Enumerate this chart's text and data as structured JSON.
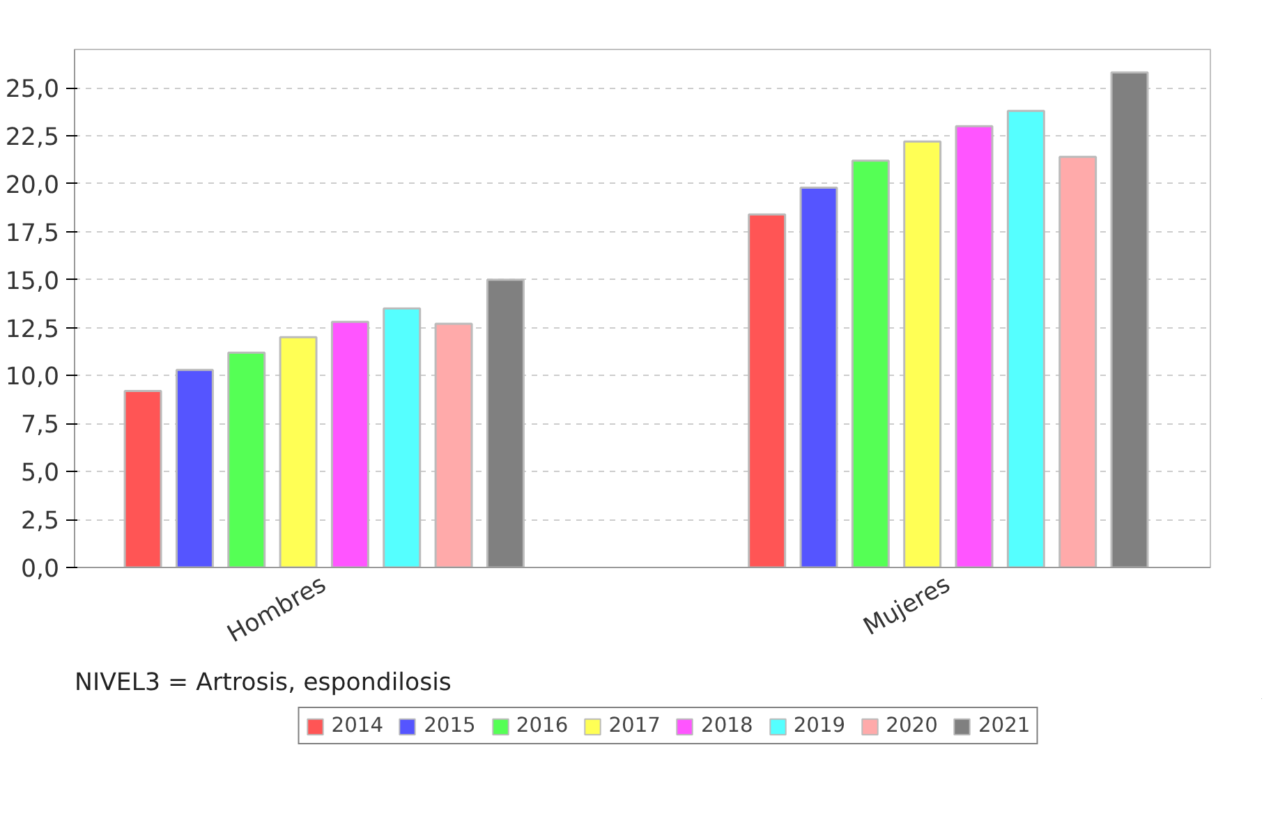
{
  "chart_data": {
    "type": "bar",
    "categories": [
      "Hombres",
      "Mujeres"
    ],
    "series": [
      {
        "name": "2014",
        "color": "#ff5555",
        "values": [
          9.2,
          18.4
        ]
      },
      {
        "name": "2015",
        "color": "#5555ff",
        "values": [
          10.3,
          19.8
        ]
      },
      {
        "name": "2016",
        "color": "#55ff55",
        "values": [
          11.2,
          21.2
        ]
      },
      {
        "name": "2017",
        "color": "#ffff55",
        "values": [
          12.0,
          22.2
        ]
      },
      {
        "name": "2018",
        "color": "#ff55ff",
        "values": [
          12.8,
          23.0
        ]
      },
      {
        "name": "2019",
        "color": "#55ffff",
        "values": [
          13.5,
          23.8
        ]
      },
      {
        "name": "2020",
        "color": "#ffaaaa",
        "values": [
          12.7,
          21.4
        ]
      },
      {
        "name": "2021",
        "color": "#808080",
        "values": [
          15.0,
          25.8
        ]
      }
    ],
    "ylim": [
      0,
      27
    ],
    "yticks": [
      {
        "value": 0,
        "label": "0,0"
      },
      {
        "value": 2.5,
        "label": "2,5"
      },
      {
        "value": 5,
        "label": "5,0"
      },
      {
        "value": 7.5,
        "label": "7,5"
      },
      {
        "value": 10,
        "label": "10,0"
      },
      {
        "value": 12.5,
        "label": "12,5"
      },
      {
        "value": 15,
        "label": "15,0"
      },
      {
        "value": 17.5,
        "label": "17,5"
      },
      {
        "value": 20,
        "label": "20,0"
      },
      {
        "value": 22.5,
        "label": "22,5"
      },
      {
        "value": 25,
        "label": "25,0"
      }
    ],
    "grid": "y",
    "legend": "bottom",
    "annotations": [
      "NIVEL3 = Artrosis, espondilosis"
    ]
  }
}
